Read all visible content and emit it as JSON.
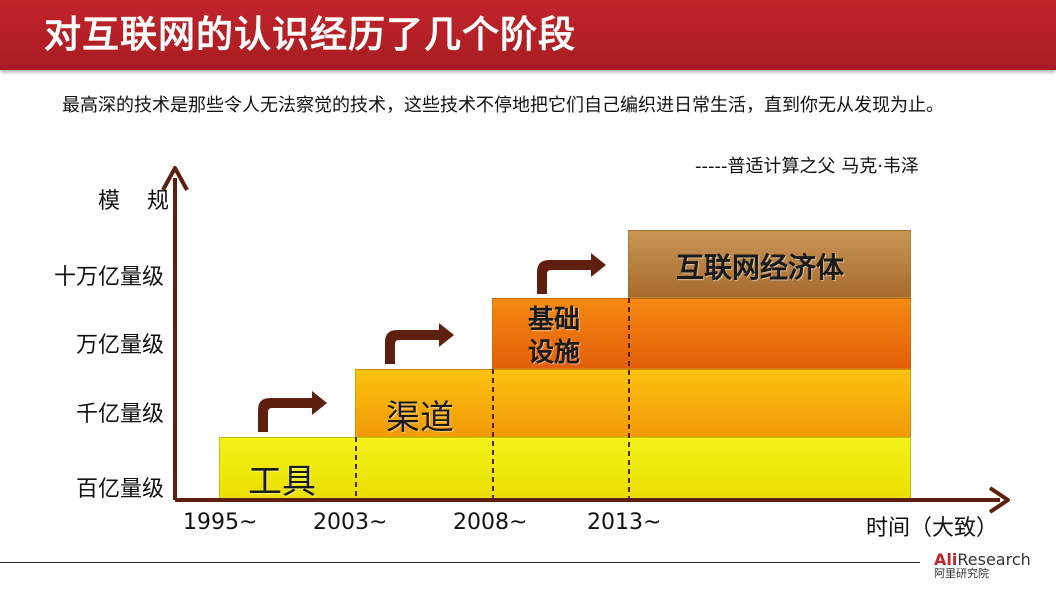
{
  "title": "对互联网的认识经历了几个阶段",
  "quote": "最高深的技术是那些令人无法察觉的技术，这些技术不停地把它们自己编织进日常生活，直到你无从发现为止。",
  "attribution": "-----普适计算之父 马克·韦泽",
  "axes": {
    "y_label": "模 规",
    "x_label": "时间（大致）",
    "y_ticks": [
      "百亿量级",
      "千亿量级",
      "万亿量级",
      "十万亿量级"
    ],
    "x_ticks": [
      "1995~",
      "2003~",
      "2008~",
      "2013~"
    ]
  },
  "stages": [
    {
      "label": "工具",
      "start": "1995~",
      "level": "百亿量级",
      "color": "#eee600"
    },
    {
      "label": "渠道",
      "start": "2003~",
      "level": "千亿量级",
      "color": "#f6a80b"
    },
    {
      "label": "基础设施",
      "label_line1": "基础",
      "label_line2": "设施",
      "start": "2008~",
      "level": "万亿量级",
      "color": "#ec700d"
    },
    {
      "label": "互联网经济体",
      "start": "2013~",
      "level": "十万亿量级",
      "color": "#b87f40"
    }
  ],
  "colors": {
    "title_bar": "#b2202a",
    "axis_arrow": "#5e1f0f",
    "step_arrow": "#5e1f0f"
  },
  "logo": {
    "brand_prefix": "Ali",
    "brand_suffix": "Research",
    "sub": "阿里研究院"
  }
}
